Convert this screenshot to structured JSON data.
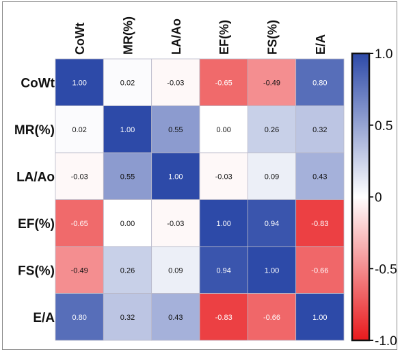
{
  "chart_data": {
    "type": "heatmap",
    "title": "",
    "xlabel": "",
    "ylabel": "",
    "x_labels": [
      "CoWt",
      "MR(%)",
      "LA/Ao",
      "EF(%)",
      "FS(%)",
      "E/A"
    ],
    "y_labels": [
      "CoWt",
      "MR(%)",
      "LA/Ao",
      "EF(%)",
      "FS(%)",
      "E/A"
    ],
    "values": [
      [
        1.0,
        0.02,
        -0.03,
        -0.65,
        -0.49,
        0.8
      ],
      [
        0.02,
        1.0,
        0.55,
        0.0,
        0.26,
        0.32
      ],
      [
        -0.03,
        0.55,
        1.0,
        -0.03,
        0.09,
        0.43
      ],
      [
        -0.65,
        0.0,
        -0.03,
        1.0,
        0.94,
        -0.83
      ],
      [
        -0.49,
        0.26,
        0.09,
        0.94,
        1.0,
        -0.66
      ],
      [
        0.8,
        0.32,
        0.43,
        -0.83,
        -0.66,
        1.0
      ]
    ],
    "value_labels": [
      [
        "1.00",
        "0.02",
        "-0.03",
        "-0.65",
        "-0.49",
        "0.80"
      ],
      [
        "0.02",
        "1.00",
        "0.55",
        "0.00",
        "0.26",
        "0.32"
      ],
      [
        "-0.03",
        "0.55",
        "1.00",
        "-0.03",
        "0.09",
        "0.43"
      ],
      [
        "-0.65",
        "0.00",
        "-0.03",
        "1.00",
        "0.94",
        "-0.83"
      ],
      [
        "-0.49",
        "0.26",
        "0.09",
        "0.94",
        "1.00",
        "-0.66"
      ],
      [
        "0.80",
        "0.32",
        "0.43",
        "-0.83",
        "-0.66",
        "1.00"
      ]
    ],
    "colorbar": {
      "range": [
        -1.0,
        1.0
      ],
      "ticks": [
        1.0,
        0.5,
        0,
        -0.5,
        -1.0
      ],
      "tick_labels": [
        "1.0",
        "0.5",
        "0",
        "-0.5",
        "-1.0"
      ],
      "colors": {
        "negative": "#e8191c",
        "zero": "#ffffff",
        "positive": "#2d4aa8"
      }
    },
    "grid": true,
    "legend": "right"
  }
}
